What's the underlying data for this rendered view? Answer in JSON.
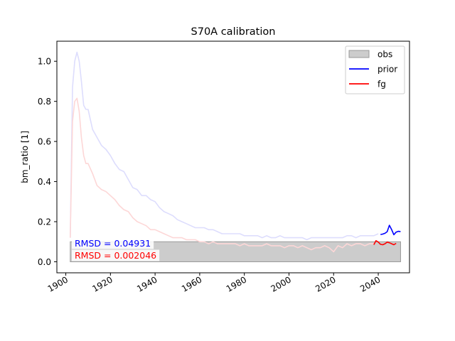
{
  "chart_data": {
    "type": "line",
    "title": "S70A calibration",
    "xlabel": "",
    "ylabel": "bm_ratio [1]",
    "xlim": [
      1896,
      2054
    ],
    "ylim": [
      -0.055,
      1.1
    ],
    "xticks": [
      1900,
      1920,
      1940,
      1960,
      1980,
      2000,
      2020,
      2040
    ],
    "yticks": [
      0.0,
      0.2,
      0.4,
      0.6,
      0.8,
      1.0
    ],
    "ytick_labels": [
      "0.0",
      "0.2",
      "0.4",
      "0.6",
      "0.8",
      "1.0"
    ],
    "grid": false,
    "legend_position": "top-right",
    "legend": [
      {
        "label": "obs",
        "kind": "patch"
      },
      {
        "label": "prior",
        "kind": "line"
      },
      {
        "label": "fg",
        "kind": "line"
      }
    ],
    "obs": {
      "name": "obs",
      "x_range": [
        1902,
        2050
      ],
      "y_range": [
        0.0,
        0.1
      ],
      "color": "#cccccc"
    },
    "series": [
      {
        "name": "prior",
        "color": "#0000ff",
        "history_color": "#ddddfd",
        "history": {
          "x": [
            1902,
            1903,
            1904,
            1905,
            1906,
            1907,
            1908,
            1909,
            1910,
            1912,
            1914,
            1916,
            1918,
            1920,
            1922,
            1924,
            1926,
            1928,
            1930,
            1932,
            1934,
            1936,
            1938,
            1940,
            1942,
            1944,
            1946,
            1948,
            1950,
            1952,
            1954,
            1956,
            1958,
            1960,
            1962,
            1964,
            1966,
            1968,
            1970,
            1972,
            1974,
            1976,
            1978,
            1980,
            1982,
            1984,
            1986,
            1988,
            1990,
            1992,
            1994,
            1996,
            1998,
            2000,
            2002,
            2004,
            2006,
            2008,
            2010,
            2012,
            2014,
            2016,
            2018,
            2020,
            2022,
            2024,
            2026,
            2028,
            2030,
            2032,
            2034,
            2036,
            2038,
            2040
          ],
          "y": [
            0.12,
            0.87,
            1.0,
            1.045,
            1.0,
            0.9,
            0.78,
            0.76,
            0.76,
            0.66,
            0.62,
            0.58,
            0.56,
            0.53,
            0.49,
            0.46,
            0.45,
            0.41,
            0.37,
            0.36,
            0.33,
            0.33,
            0.31,
            0.3,
            0.27,
            0.25,
            0.24,
            0.23,
            0.21,
            0.2,
            0.19,
            0.18,
            0.17,
            0.17,
            0.17,
            0.16,
            0.16,
            0.15,
            0.14,
            0.14,
            0.14,
            0.14,
            0.14,
            0.13,
            0.13,
            0.13,
            0.13,
            0.12,
            0.13,
            0.12,
            0.12,
            0.13,
            0.12,
            0.12,
            0.12,
            0.12,
            0.12,
            0.11,
            0.12,
            0.12,
            0.12,
            0.12,
            0.12,
            0.12,
            0.12,
            0.12,
            0.13,
            0.13,
            0.12,
            0.13,
            0.13,
            0.13,
            0.13,
            0.14
          ]
        },
        "calibration": {
          "x": [
            2041,
            2042,
            2043,
            2044,
            2045,
            2046,
            2047,
            2048,
            2049,
            2050
          ],
          "y": [
            0.136,
            0.138,
            0.142,
            0.15,
            0.182,
            0.16,
            0.135,
            0.148,
            0.152,
            0.15
          ]
        }
      },
      {
        "name": "fg",
        "color": "#ff0000",
        "history_color": "#fdd7d7",
        "history": {
          "x": [
            1902,
            1903,
            1904,
            1905,
            1906,
            1907,
            1908,
            1909,
            1910,
            1912,
            1914,
            1916,
            1918,
            1920,
            1922,
            1924,
            1926,
            1928,
            1930,
            1932,
            1934,
            1936,
            1938,
            1940,
            1942,
            1944,
            1946,
            1948,
            1950,
            1952,
            1954,
            1956,
            1958,
            1960,
            1962,
            1964,
            1966,
            1968,
            1970,
            1972,
            1974,
            1976,
            1978,
            1980,
            1982,
            1984,
            1986,
            1988,
            1990,
            1992,
            1994,
            1996,
            1998,
            2000,
            2002,
            2004,
            2006,
            2008,
            2010,
            2012,
            2014,
            2016,
            2018,
            2020,
            2022,
            2024,
            2026,
            2028,
            2030,
            2032,
            2034,
            2036,
            2038
          ],
          "y": [
            0.12,
            0.7,
            0.8,
            0.815,
            0.75,
            0.62,
            0.53,
            0.49,
            0.49,
            0.44,
            0.38,
            0.36,
            0.35,
            0.33,
            0.31,
            0.28,
            0.26,
            0.25,
            0.22,
            0.2,
            0.19,
            0.18,
            0.16,
            0.16,
            0.15,
            0.14,
            0.13,
            0.12,
            0.12,
            0.12,
            0.11,
            0.11,
            0.11,
            0.1,
            0.1,
            0.09,
            0.1,
            0.09,
            0.09,
            0.09,
            0.09,
            0.09,
            0.08,
            0.09,
            0.08,
            0.08,
            0.08,
            0.08,
            0.09,
            0.08,
            0.08,
            0.08,
            0.07,
            0.08,
            0.08,
            0.07,
            0.08,
            0.07,
            0.06,
            0.07,
            0.07,
            0.08,
            0.07,
            0.05,
            0.08,
            0.07,
            0.09,
            0.08,
            0.09,
            0.09,
            0.08,
            0.09,
            0.09
          ]
        },
        "calibration": {
          "x": [
            2038,
            2039,
            2040,
            2041,
            2042,
            2043,
            2044,
            2045,
            2046,
            2047,
            2048
          ],
          "y": [
            0.085,
            0.105,
            0.098,
            0.087,
            0.085,
            0.09,
            0.098,
            0.095,
            0.09,
            0.085,
            0.092
          ]
        }
      }
    ],
    "annotations": [
      {
        "text": "RMSD = 0.04931",
        "color": "#0000ff"
      },
      {
        "text": "RMSD = 0.002046",
        "color": "#ff0000"
      }
    ]
  }
}
